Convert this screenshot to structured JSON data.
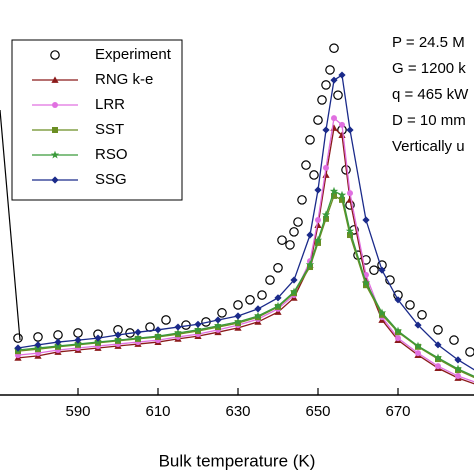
{
  "chart_data": {
    "type": "line",
    "x_label": "Bulk temperature (K)",
    "xlim": [
      570,
      690
    ],
    "xticks": [
      590,
      610,
      630,
      650,
      670
    ],
    "ylim": [
      0,
      100
    ],
    "legend": "upper left",
    "annotations": [
      "P = 24.5 M",
      "G = 1200 k",
      "q = 465 kW",
      "D = 10 mm",
      "Vertically u"
    ],
    "series": [
      {
        "name": "Experiment",
        "color": "#000000",
        "marker": "circle",
        "mode": "markers",
        "x": [
          575,
          580,
          585,
          590,
          595,
          600,
          603,
          608,
          612,
          617,
          622,
          626,
          630,
          633,
          636,
          638,
          640,
          641,
          643,
          644,
          645,
          646,
          647,
          648,
          649,
          650,
          651,
          652,
          653,
          654,
          655,
          656,
          657,
          658,
          659,
          660,
          662,
          664,
          666,
          668,
          670,
          673,
          676,
          680,
          684,
          688
        ],
        "values": [
          14.4,
          14.7,
          15.2,
          15.7,
          15.4,
          16.5,
          15.7,
          17.2,
          19,
          17.7,
          18.5,
          20.8,
          22.8,
          24.1,
          25.3,
          29.1,
          32.2,
          39.2,
          38,
          41.3,
          43.8,
          49.4,
          58.2,
          64.6,
          55.7,
          69.6,
          74.7,
          78.5,
          82.3,
          87.8,
          75.9,
          67.1,
          57,
          48.1,
          41.8,
          35.4,
          34.2,
          31.6,
          32.9,
          29.1,
          25.3,
          22.8,
          20.3,
          16.5,
          13.9,
          10.9
        ]
      },
      {
        "name": "RNG k-e",
        "color": "#8b1a1a",
        "marker": "triangle",
        "mode": "lines+markers",
        "x": [
          575,
          580,
          585,
          590,
          595,
          600,
          605,
          610,
          615,
          620,
          625,
          630,
          635,
          640,
          644,
          648,
          650,
          652,
          654,
          656,
          658,
          662,
          666,
          670,
          675,
          680,
          685,
          690
        ],
        "values": [
          9.4,
          9.9,
          10.9,
          11.4,
          11.9,
          12.4,
          12.9,
          13.4,
          14.2,
          14.9,
          15.9,
          17.0,
          18.5,
          21.0,
          24.6,
          32.9,
          43.0,
          55.7,
          67.6,
          65.8,
          49.4,
          29.1,
          19.0,
          13.9,
          10.1,
          6.8,
          4.3,
          2.5
        ]
      },
      {
        "name": "LRR",
        "color": "#e070e0",
        "marker": "circle-filled",
        "mode": "lines+markers",
        "x": [
          575,
          580,
          585,
          590,
          595,
          600,
          605,
          610,
          615,
          620,
          625,
          630,
          635,
          640,
          644,
          648,
          650,
          652,
          654,
          656,
          658,
          662,
          666,
          670,
          675,
          680,
          685,
          690
        ],
        "values": [
          10.1,
          10.6,
          11.4,
          11.9,
          12.4,
          12.9,
          13.4,
          13.9,
          14.7,
          15.4,
          16.5,
          17.7,
          19.2,
          21.8,
          25.3,
          33.9,
          44.3,
          57.5,
          70.1,
          68.4,
          51.1,
          30.4,
          19.7,
          14.4,
          10.6,
          7.3,
          4.8,
          3.0
        ]
      },
      {
        "name": "SST",
        "color": "#6b8e23",
        "marker": "square",
        "mode": "lines+markers",
        "x": [
          575,
          580,
          585,
          590,
          595,
          600,
          605,
          610,
          615,
          620,
          625,
          630,
          635,
          640,
          644,
          648,
          650,
          652,
          654,
          656,
          658,
          662,
          666,
          670,
          675,
          680,
          685,
          690
        ],
        "values": [
          11.1,
          11.6,
          12.2,
          12.7,
          13.2,
          13.7,
          14.2,
          14.7,
          15.4,
          16.2,
          17.2,
          18.2,
          19.7,
          22.3,
          25.8,
          32.4,
          38.5,
          44.6,
          50.4,
          49.4,
          40.5,
          27.8,
          20.3,
          15.9,
          12.2,
          9.1,
          6.3,
          4.0
        ]
      },
      {
        "name": "RSO",
        "color": "#3a9a3a",
        "marker": "star",
        "mode": "lines+markers",
        "x": [
          575,
          580,
          585,
          590,
          595,
          600,
          605,
          610,
          615,
          620,
          625,
          630,
          635,
          640,
          644,
          648,
          650,
          652,
          654,
          656,
          658,
          662,
          666,
          670,
          675,
          680,
          685,
          690
        ],
        "values": [
          11.4,
          11.9,
          12.4,
          12.9,
          13.4,
          13.9,
          14.4,
          14.9,
          15.7,
          16.5,
          17.5,
          18.5,
          20.0,
          22.5,
          26.1,
          33.0,
          39.2,
          45.6,
          51.6,
          50.6,
          41.5,
          28.4,
          20.8,
          16.2,
          12.4,
          9.4,
          6.6,
          4.3
        ]
      },
      {
        "name": "SSG",
        "color": "#1a2a8a",
        "marker": "diamond",
        "mode": "lines+markers",
        "x": [
          575,
          580,
          585,
          590,
          595,
          600,
          605,
          610,
          615,
          620,
          625,
          630,
          635,
          640,
          644,
          648,
          650,
          652,
          654,
          656,
          658,
          662,
          666,
          670,
          675,
          680,
          685,
          690
        ],
        "values": [
          11.9,
          12.7,
          13.4,
          13.9,
          14.4,
          15.2,
          15.9,
          16.5,
          17.2,
          17.9,
          19.0,
          20.0,
          21.8,
          24.6,
          29.1,
          40.5,
          51.9,
          67.1,
          79.7,
          81.0,
          67.1,
          44.3,
          31.6,
          24.1,
          17.7,
          12.7,
          8.9,
          5.8
        ]
      }
    ]
  }
}
